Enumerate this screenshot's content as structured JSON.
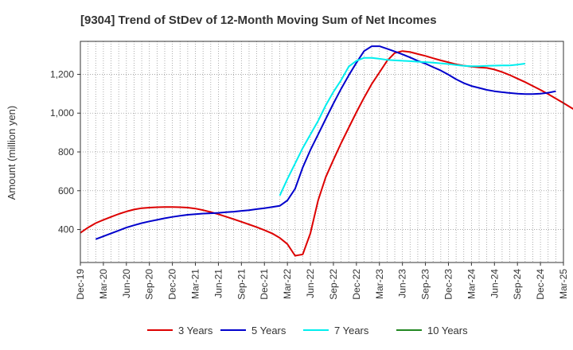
{
  "chart_data": {
    "type": "line",
    "title": "[9304]  Trend of StDev of 12-Month Moving Sum of Net Incomes",
    "ylabel": "Amount (million yen)",
    "xlabel": "",
    "ylim": [
      230,
      1370
    ],
    "yticks": [
      400,
      600,
      800,
      1000,
      1200
    ],
    "ytick_labels": [
      "400",
      "600",
      "800",
      "1,000",
      "1,200"
    ],
    "x_start": "Dec-19",
    "xticks": [
      "Dec-19",
      "Mar-20",
      "Jun-20",
      "Sep-20",
      "Dec-20",
      "Mar-21",
      "Jun-21",
      "Sep-21",
      "Dec-21",
      "Mar-22",
      "Jun-22",
      "Sep-22",
      "Dec-22",
      "Mar-23",
      "Jun-23",
      "Sep-23",
      "Dec-23",
      "Mar-24",
      "Jun-24",
      "Sep-24",
      "Dec-24",
      "Mar-25"
    ],
    "grid": true,
    "legend_position": "bottom",
    "series": [
      {
        "name": "3 Years",
        "color": "#dd0000",
        "start": "Dec-19",
        "values": [
          383,
          410,
          433,
          450,
          465,
          480,
          493,
          503,
          510,
          513,
          515,
          516,
          516,
          515,
          513,
          508,
          500,
          490,
          479,
          466,
          453,
          440,
          426,
          412,
          397,
          380,
          357,
          325,
          265,
          272,
          380,
          550,
          670,
          760,
          845,
          925,
          1005,
          1080,
          1150,
          1210,
          1270,
          1310,
          1320,
          1315,
          1305,
          1295,
          1283,
          1272,
          1262,
          1252,
          1245,
          1240,
          1236,
          1233,
          1225,
          1212,
          1196,
          1178,
          1160,
          1140,
          1120,
          1098,
          1075,
          1052,
          1028,
          1005
        ]
      },
      {
        "name": "5 Years",
        "color": "#0000cc",
        "start": "Feb-20",
        "values": [
          350,
          365,
          380,
          395,
          410,
          422,
          433,
          442,
          450,
          458,
          465,
          471,
          476,
          479,
          482,
          484,
          486,
          489,
          492,
          496,
          500,
          505,
          510,
          516,
          522,
          550,
          610,
          720,
          810,
          890,
          970,
          1050,
          1125,
          1195,
          1260,
          1320,
          1345,
          1345,
          1332,
          1318,
          1303,
          1287,
          1270,
          1255,
          1237,
          1220,
          1198,
          1175,
          1155,
          1140,
          1130,
          1120,
          1113,
          1108,
          1104,
          1100,
          1098,
          1098,
          1100,
          1105,
          1113
        ]
      },
      {
        "name": "7 Years",
        "color": "#00eeee",
        "start": "Feb-22",
        "values": [
          575,
          660,
          740,
          820,
          890,
          960,
          1040,
          1110,
          1170,
          1240,
          1270,
          1285,
          1285,
          1280,
          1275,
          1272,
          1270,
          1268,
          1265,
          1263,
          1260,
          1257,
          1253,
          1248,
          1244,
          1242,
          1242,
          1244,
          1245,
          1246,
          1246,
          1250,
          1255
        ]
      },
      {
        "name": "10 Years",
        "color": "#228822",
        "start": "Dec-24",
        "values": []
      }
    ]
  }
}
